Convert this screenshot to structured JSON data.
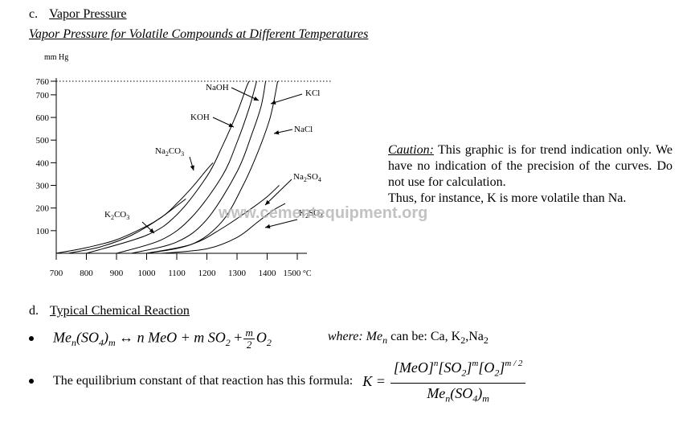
{
  "section_c": {
    "letter": "c.",
    "title": "Vapor Pressure"
  },
  "chart_subtitle": "Vapor Pressure for Volatile Compounds at Different Temperatures",
  "chart_data": {
    "type": "line",
    "title": "",
    "xlabel": "",
    "ylabel": "mm Hg",
    "xunit": "°C",
    "xlim": [
      700,
      1500
    ],
    "ylim": [
      0,
      760
    ],
    "x_ticks": [
      700,
      800,
      900,
      1000,
      1100,
      1200,
      1300,
      1400,
      1500
    ],
    "y_ticks": [
      100,
      200,
      300,
      400,
      500,
      600,
      700,
      760
    ],
    "reference_line": {
      "y": 760,
      "style": "dotted"
    },
    "grid": false,
    "series": [
      {
        "name": "K2CO3",
        "label_main": "K",
        "label_sub": "2",
        "label_tail": "CO",
        "label_sub2": "3",
        "points": [
          [
            700,
            0
          ],
          [
            800,
            25
          ],
          [
            900,
            60
          ],
          [
            1000,
            120
          ],
          [
            1050,
            160
          ],
          [
            1100,
            210
          ],
          [
            1130,
            240
          ]
        ]
      },
      {
        "name": "Na2CO3",
        "label_main": "Na",
        "label_sub": "2",
        "label_tail": "CO",
        "label_sub2": "3",
        "points": [
          [
            740,
            0
          ],
          [
            850,
            30
          ],
          [
            950,
            80
          ],
          [
            1050,
            160
          ],
          [
            1100,
            220
          ],
          [
            1150,
            290
          ],
          [
            1200,
            370
          ],
          [
            1220,
            400
          ]
        ]
      },
      {
        "name": "KOH",
        "label_main": "KOH",
        "points": [
          [
            800,
            0
          ],
          [
            1000,
            80
          ],
          [
            1100,
            170
          ],
          [
            1200,
            340
          ],
          [
            1250,
            470
          ],
          [
            1300,
            620
          ],
          [
            1330,
            730
          ],
          [
            1340,
            760
          ]
        ]
      },
      {
        "name": "NaOH",
        "label_main": "NaOH",
        "points": [
          [
            900,
            0
          ],
          [
            1050,
            60
          ],
          [
            1150,
            160
          ],
          [
            1250,
            340
          ],
          [
            1300,
            490
          ],
          [
            1340,
            640
          ],
          [
            1365,
            760
          ]
        ]
      },
      {
        "name": "KCl",
        "label_main": "KCl",
        "points": [
          [
            950,
            0
          ],
          [
            1100,
            50
          ],
          [
            1200,
            150
          ],
          [
            1300,
            360
          ],
          [
            1350,
            530
          ],
          [
            1380,
            650
          ],
          [
            1395,
            760
          ]
        ]
      },
      {
        "name": "NaCl",
        "label_main": "NaCl",
        "points": [
          [
            1000,
            0
          ],
          [
            1150,
            40
          ],
          [
            1250,
            140
          ],
          [
            1320,
            300
          ],
          [
            1370,
            450
          ],
          [
            1410,
            600
          ],
          [
            1435,
            760
          ]
        ]
      },
      {
        "name": "Na2SO4",
        "label_main": "Na",
        "label_sub": "2",
        "label_tail": "SO",
        "label_sub2": "4",
        "points": [
          [
            1000,
            0
          ],
          [
            1150,
            40
          ],
          [
            1250,
            110
          ],
          [
            1350,
            200
          ],
          [
            1400,
            250
          ],
          [
            1440,
            300
          ]
        ]
      },
      {
        "name": "K2SO4",
        "label_main": "K",
        "label_sub": "2",
        "label_tail": "SO",
        "label_sub2": "4",
        "points": [
          [
            1050,
            0
          ],
          [
            1200,
            20
          ],
          [
            1300,
            70
          ],
          [
            1370,
            140
          ],
          [
            1420,
            190
          ],
          [
            1460,
            220
          ]
        ]
      }
    ]
  },
  "caution": {
    "label": "Caution:",
    "text": " This graphic is for trend indication only. We have no indication of the precision of the curves.  Do not use for calculation.",
    "line2": "Thus, for instance, K is more volatile than Na."
  },
  "watermark": "www.cementequipment.org",
  "section_d": {
    "letter": "d.",
    "title": "Typical Chemical Reaction"
  },
  "reaction": {
    "me": "Me",
    "n": "n",
    "so4": "(SO",
    "four": "4",
    "close": ")",
    "m": "m",
    "arrow": "↔",
    "mid": "n MeO + m SO",
    "two": "2",
    "plus": "+",
    "frac_num": "m",
    "frac_den": "2",
    "o2": "O",
    "o2_sub": "2",
    "where_label": "where: Me",
    "where_sub": "n",
    "where_text": " can be: Ca, K",
    "where_k_sub": "2",
    "where_na": ",Na",
    "where_na_sub": "2"
  },
  "equilibrium": {
    "text": "The equilibrium constant of that reaction has this formula:",
    "k": "K =",
    "numerator": "[MeO]",
    "num_sup_n": "n",
    "so2": "[SO",
    "so2_sub": "2",
    "so2_close": "]",
    "num_sup_m": "m",
    "o2": "[O",
    "o2_sub": "2",
    "o2_close": "]",
    "num_sup_m2": "m / 2",
    "den_me": "Me",
    "den_n": "n",
    "den_so4": "(SO",
    "den_4": "4",
    "den_close": ")",
    "den_m": "m"
  }
}
